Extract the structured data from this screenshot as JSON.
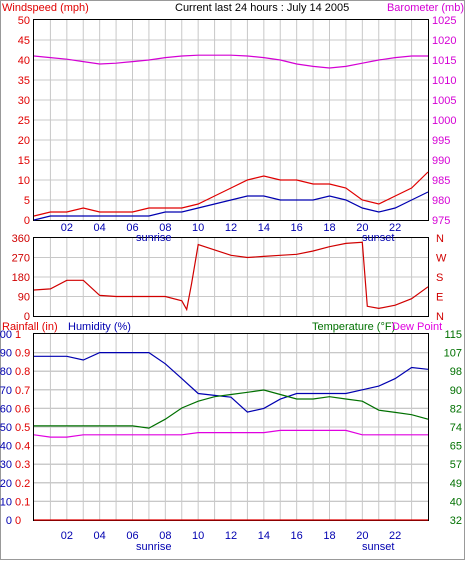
{
  "title": "Current last 24 hours : July 14 2005",
  "colors": {
    "windspeed": "#e00000",
    "gust": "#e00000",
    "barometer": "#d400d4",
    "direction": "#d00000",
    "humidity": "#0000b0",
    "temperature": "#007000",
    "dewpoint": "#e000e0",
    "rainfall": "#e00000",
    "grid": "#c8c8c8",
    "frame": "#000000"
  },
  "time_axis": {
    "hour_labels": [
      "02",
      "04",
      "06",
      "08",
      "10",
      "12",
      "14",
      "16",
      "18",
      "20",
      "22"
    ],
    "sunrise_label": "sunrise",
    "sunset_label": "sunset"
  },
  "chart_data": [
    {
      "type": "line",
      "panel": "wind-barometer",
      "ylabel_left": "Windspeed (mph)",
      "ylabel_right": "Barometer (mb)",
      "left_ticks": [
        "50",
        "45",
        "40",
        "35",
        "30",
        "25",
        "20",
        "15",
        "10",
        "5",
        "0"
      ],
      "right_ticks": [
        "1025",
        "1020",
        "1015",
        "1010",
        "1005",
        "1000",
        "995",
        "990",
        "985",
        "980",
        "975"
      ],
      "ylim_left": [
        0,
        50
      ],
      "ylim_right": [
        975,
        1025
      ],
      "x_hours": [
        0,
        1,
        2,
        3,
        4,
        5,
        6,
        7,
        8,
        9,
        10,
        11,
        12,
        13,
        14,
        15,
        16,
        17,
        18,
        19,
        20,
        21,
        22,
        23,
        24
      ],
      "series": [
        {
          "role": "barometer",
          "values": [
            1016,
            1015.6,
            1015.2,
            1014.6,
            1014,
            1014.2,
            1014.6,
            1015,
            1015.6,
            1016,
            1016.2,
            1016.2,
            1016.2,
            1016,
            1015.6,
            1015,
            1014,
            1013.4,
            1013,
            1013.4,
            1014.2,
            1015,
            1015.6,
            1016,
            1016
          ]
        },
        {
          "role": "gust",
          "values": [
            1,
            2,
            2,
            3,
            2,
            2,
            2,
            3,
            3,
            3,
            4,
            6,
            8,
            10,
            11,
            10,
            10,
            9,
            9,
            8,
            5,
            4,
            6,
            8,
            12
          ]
        },
        {
          "role": "windspeed",
          "values": [
            0,
            1,
            1,
            1,
            1,
            1,
            1,
            1,
            2,
            2,
            3,
            4,
            5,
            6,
            6,
            5,
            5,
            5,
            6,
            5,
            3,
            2,
            3,
            5,
            7
          ]
        }
      ]
    },
    {
      "type": "line",
      "panel": "wind-direction",
      "left_ticks": [
        "360",
        "270",
        "180",
        "90",
        "0"
      ],
      "right_ticks": [
        "N",
        "W",
        "S",
        "E",
        "N"
      ],
      "ylim": [
        0,
        360
      ],
      "x_hours": [
        0,
        1,
        2,
        3,
        4,
        5,
        6,
        7,
        8,
        9,
        9.3,
        9.6,
        10,
        11,
        12,
        13,
        14,
        15,
        16,
        17,
        18,
        19,
        20,
        20.3,
        21,
        22,
        23,
        24
      ],
      "series": [
        {
          "role": "direction",
          "values": [
            120,
            125,
            165,
            165,
            95,
            90,
            90,
            90,
            90,
            70,
            30,
            150,
            330,
            305,
            280,
            270,
            275,
            280,
            285,
            300,
            320,
            335,
            340,
            45,
            35,
            50,
            80,
            135
          ]
        }
      ]
    },
    {
      "type": "line",
      "panel": "rain-humidity-temperature",
      "ylabel_left_rain": "Rainfall (in)",
      "ylabel_left_humidity": "Humidity (%)",
      "ylabel_right_temperature": "Temperature (°F)",
      "ylabel_right_dewpoint": "Dew Point",
      "humidity_ticks": [
        "100",
        "90",
        "80",
        "70",
        "60",
        "50",
        "40",
        "30",
        "20",
        "10",
        "0"
      ],
      "rain_ticks": [
        "1",
        "0.9",
        "0.8",
        "0.7",
        "0.6",
        "0.5",
        "0.4",
        "0.3",
        "0.2",
        "0.1",
        "0"
      ],
      "temperature_ticks": [
        "115",
        "107",
        "98",
        "90",
        "82",
        "74",
        "65",
        "57",
        "49",
        "40",
        "32"
      ],
      "ylim_humidity": [
        0,
        100
      ],
      "ylim_rain": [
        0,
        1
      ],
      "ylim_temperature": [
        32,
        115
      ],
      "x_hours": [
        0,
        1,
        2,
        3,
        4,
        5,
        6,
        7,
        8,
        9,
        10,
        11,
        12,
        13,
        14,
        15,
        16,
        17,
        18,
        19,
        20,
        21,
        22,
        23,
        24
      ],
      "series": [
        {
          "role": "humidity",
          "values": [
            88,
            88,
            88,
            86,
            90,
            90,
            90,
            90,
            84,
            76,
            68,
            67,
            66,
            58,
            60,
            65,
            68,
            68,
            68,
            68,
            70,
            72,
            76,
            82,
            81
          ]
        },
        {
          "role": "temperature",
          "values": [
            74,
            74,
            74,
            74,
            74,
            74,
            74,
            73,
            77,
            82,
            85,
            87,
            88,
            89,
            90,
            88,
            86,
            86,
            87,
            86,
            85,
            81,
            80,
            79,
            77
          ]
        },
        {
          "role": "dewpoint",
          "values": [
            70,
            69,
            69,
            70,
            70,
            70,
            70,
            70,
            70,
            70,
            71,
            71,
            71,
            71,
            71,
            72,
            72,
            72,
            72,
            72,
            70,
            70,
            70,
            70,
            70
          ]
        },
        {
          "role": "rainfall",
          "values": [
            0,
            0,
            0,
            0,
            0,
            0,
            0,
            0,
            0,
            0,
            0,
            0,
            0,
            0,
            0,
            0,
            0,
            0,
            0,
            0,
            0,
            0,
            0,
            0,
            0
          ]
        }
      ]
    }
  ]
}
